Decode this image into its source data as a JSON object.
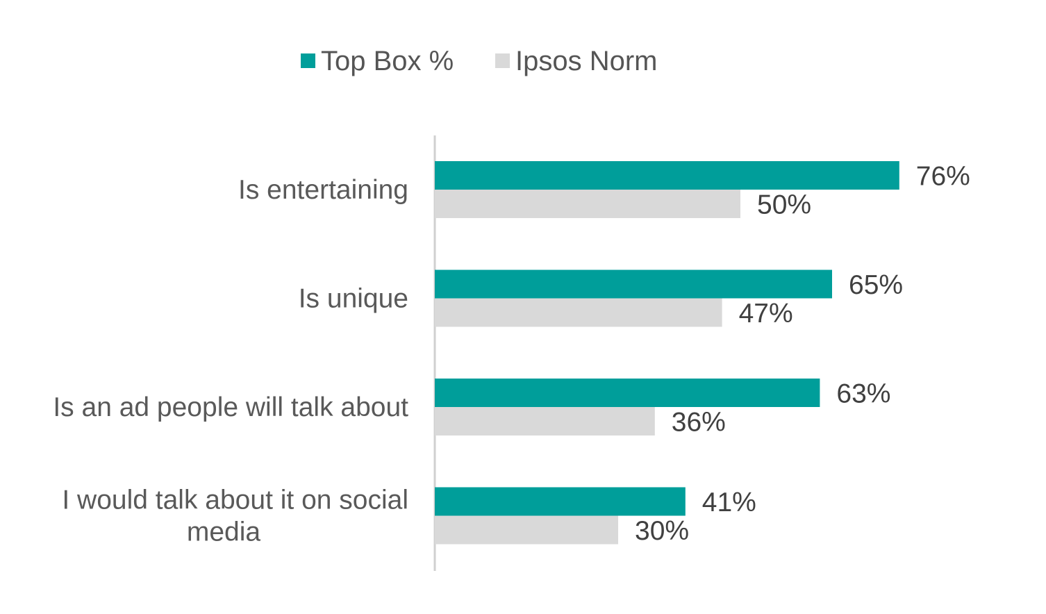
{
  "chart_data": {
    "type": "bar",
    "orientation": "horizontal",
    "title": "",
    "xlabel": "",
    "ylabel": "",
    "xlim": [
      0,
      100
    ],
    "grid": false,
    "legend_position": "top",
    "categories": [
      [
        "Is entertaining"
      ],
      [
        "Is unique"
      ],
      [
        "Is an ad people will talk about"
      ],
      [
        "I would talk about it on social",
        "media"
      ]
    ],
    "series": [
      {
        "name": "Top Box %",
        "color": "#009E9A",
        "values": [
          76,
          65,
          63,
          41
        ],
        "labels": [
          "76%",
          "65%",
          "63%",
          "41%"
        ]
      },
      {
        "name": "Ipsos Norm",
        "color": "#D9D9D9",
        "values": [
          50,
          47,
          36,
          30
        ],
        "labels": [
          "50%",
          "47%",
          "36%",
          "30%"
        ]
      }
    ],
    "axis_color": "#D0D0D0"
  }
}
